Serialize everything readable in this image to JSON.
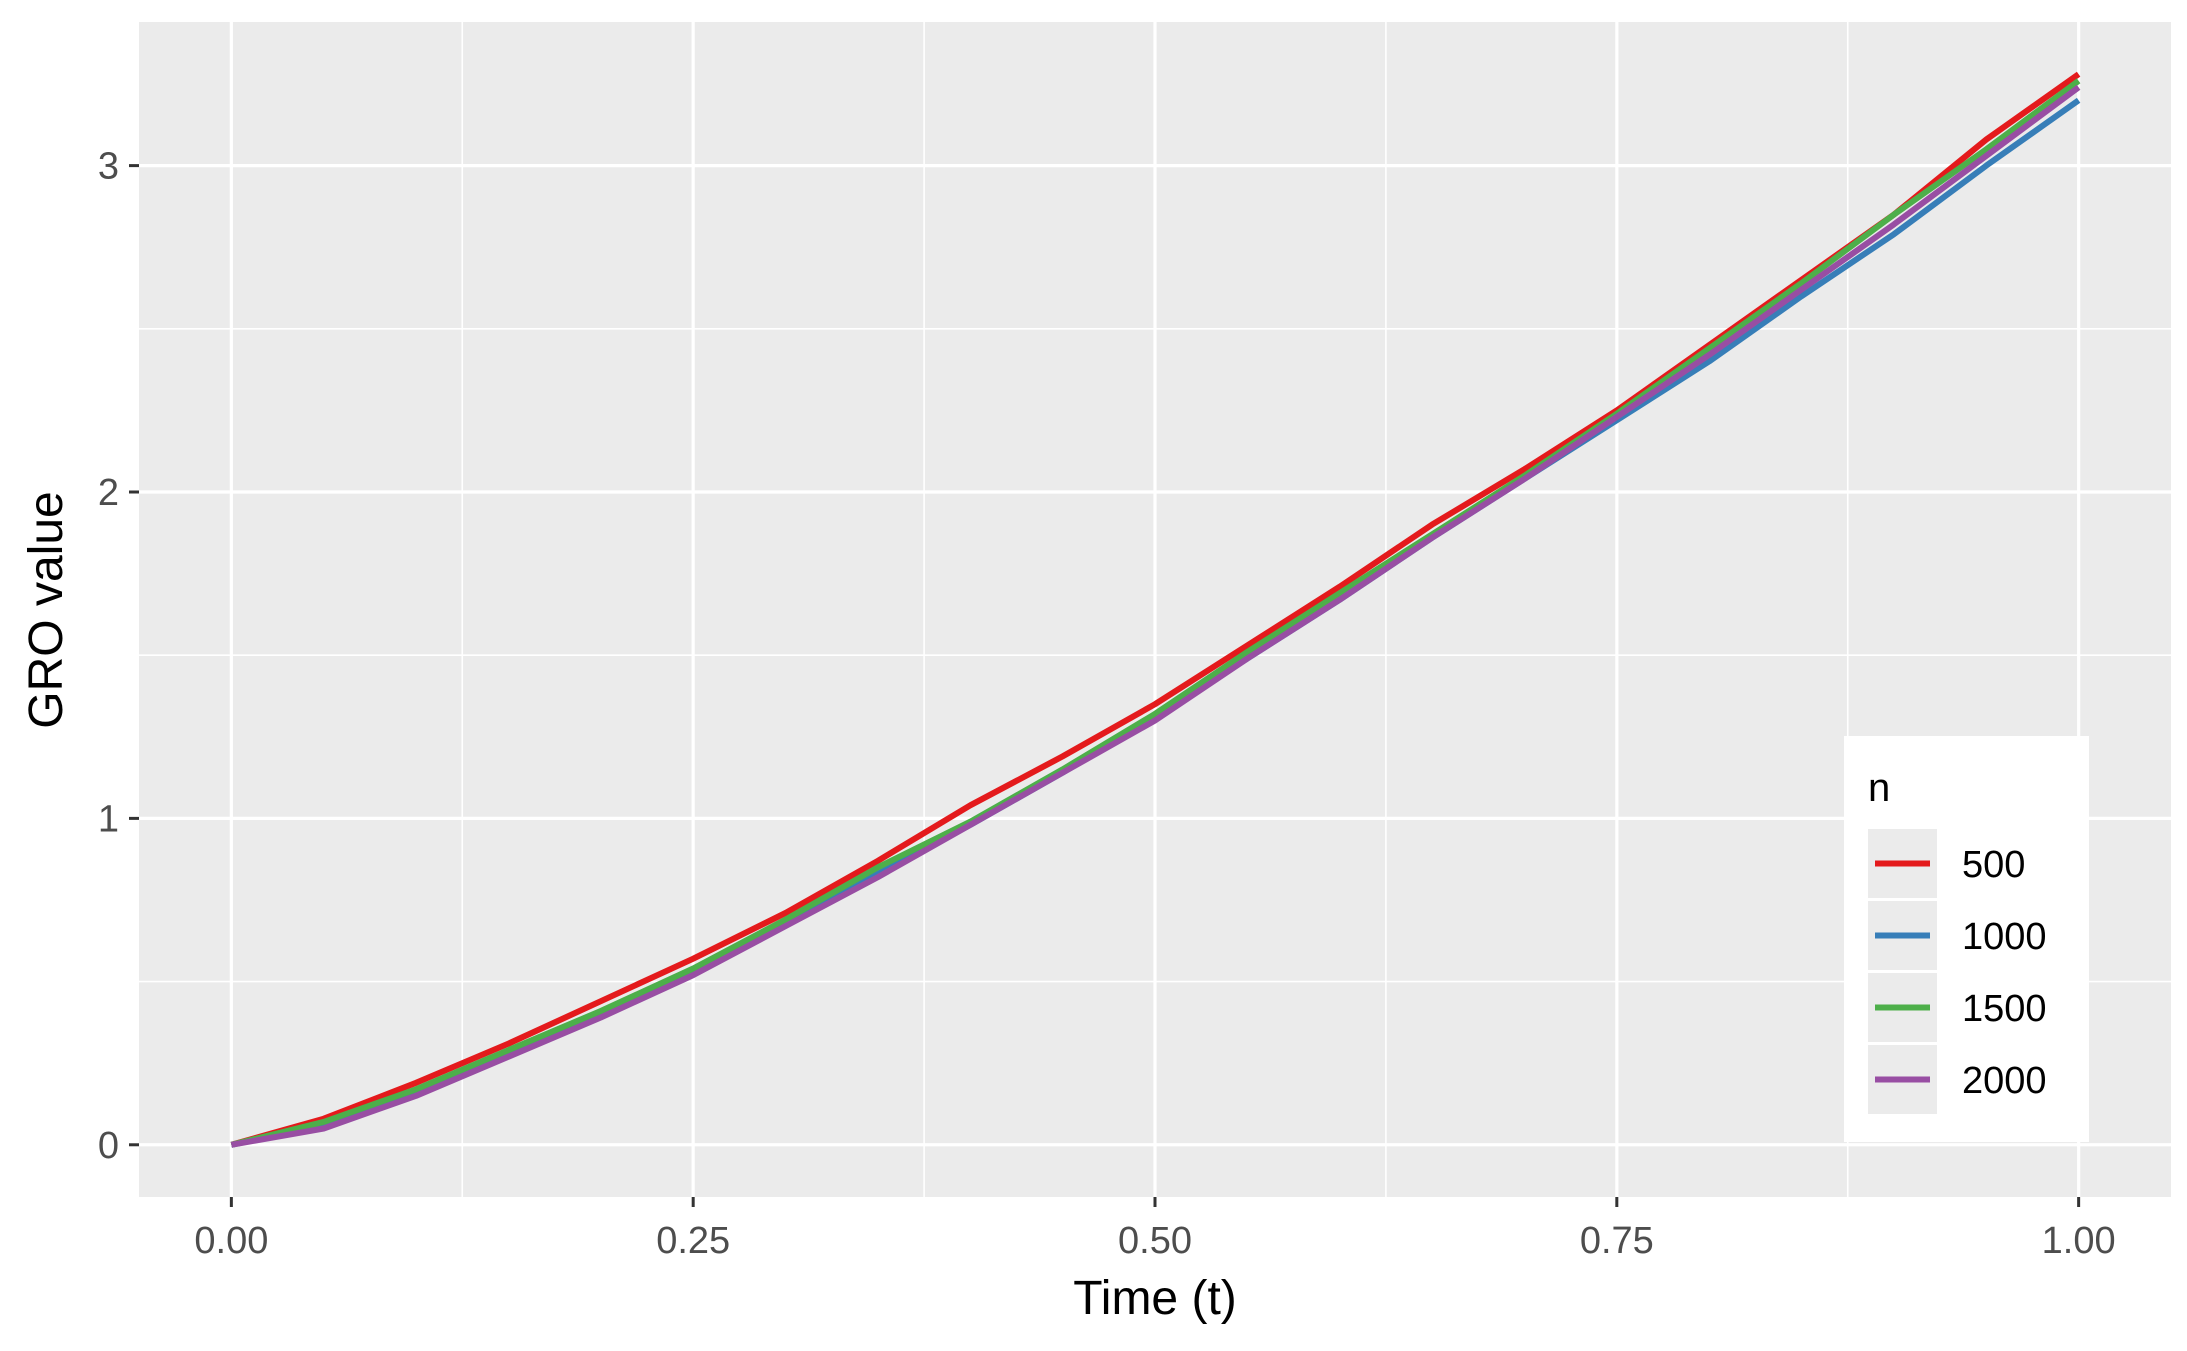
{
  "chart_data": {
    "type": "line",
    "title": "",
    "xlabel": "Time (t)",
    "ylabel": "GRO value",
    "xlim": [
      -0.05,
      1.05
    ],
    "ylim": [
      -0.16,
      3.44
    ],
    "x_ticks": [
      0.0,
      0.25,
      0.5,
      0.75,
      1.0
    ],
    "x_tick_labels": [
      "0.00",
      "0.25",
      "0.50",
      "0.75",
      "1.00"
    ],
    "y_ticks": [
      0,
      1,
      2,
      3
    ],
    "y_tick_labels": [
      "0",
      "1",
      "2",
      "3"
    ],
    "grid": true,
    "legend_title": "n",
    "legend_position": "bottom-right",
    "x": [
      0.0,
      0.05,
      0.1,
      0.15,
      0.2,
      0.25,
      0.3,
      0.35,
      0.4,
      0.45,
      0.5,
      0.55,
      0.6,
      0.65,
      0.7,
      0.75,
      0.8,
      0.85,
      0.9,
      0.95,
      1.0
    ],
    "series": [
      {
        "name": "500",
        "color": "#e41a1c",
        "values": [
          0.0,
          0.08,
          0.19,
          0.31,
          0.44,
          0.57,
          0.71,
          0.87,
          1.04,
          1.19,
          1.35,
          1.53,
          1.71,
          1.9,
          2.07,
          2.25,
          2.45,
          2.65,
          2.85,
          3.08,
          3.28
        ]
      },
      {
        "name": "1000",
        "color": "#377eb8",
        "values": [
          0.0,
          0.06,
          0.16,
          0.28,
          0.4,
          0.53,
          0.68,
          0.83,
          0.98,
          1.14,
          1.31,
          1.49,
          1.67,
          1.86,
          2.04,
          2.22,
          2.4,
          2.6,
          2.79,
          3.0,
          3.2
        ]
      },
      {
        "name": "1500",
        "color": "#4daf4a",
        "values": [
          0.0,
          0.07,
          0.17,
          0.29,
          0.41,
          0.54,
          0.69,
          0.85,
          0.99,
          1.15,
          1.32,
          1.51,
          1.69,
          1.87,
          2.05,
          2.24,
          2.44,
          2.64,
          2.85,
          3.05,
          3.26
        ]
      },
      {
        "name": "2000",
        "color": "#984ea3",
        "values": [
          0.0,
          0.05,
          0.15,
          0.27,
          0.39,
          0.52,
          0.67,
          0.82,
          0.98,
          1.14,
          1.3,
          1.49,
          1.67,
          1.86,
          2.04,
          2.23,
          2.42,
          2.62,
          2.82,
          3.03,
          3.24
        ]
      }
    ]
  }
}
